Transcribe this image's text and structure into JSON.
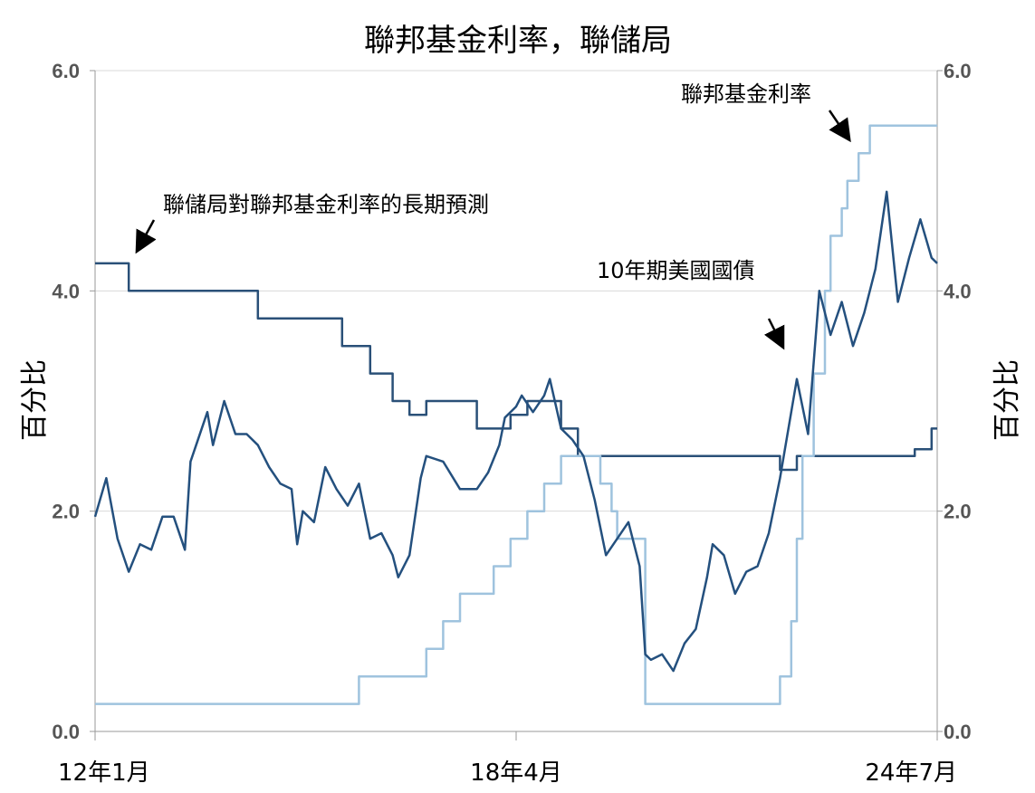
{
  "chart_data": {
    "type": "line",
    "title": "聯邦基金利率，聯儲局",
    "ylabel_left": "百分比",
    "ylabel_right": "百分比",
    "ylim": [
      0,
      6
    ],
    "yticks": [
      "0.0",
      "2.0",
      "4.0",
      "6.0"
    ],
    "x_range": [
      "2012-01",
      "2024-07"
    ],
    "xticks": [
      {
        "label": "12年1月",
        "date": "2012-01"
      },
      {
        "label": "18年4月",
        "date": "2018-04"
      },
      {
        "label": "24年7月",
        "date": "2024-07"
      }
    ],
    "colors": {
      "long_run": "#2a5078",
      "fed_funds": "#9fc3de",
      "treasury": "#24507e",
      "grid": "#d9d9d9"
    },
    "annotations": {
      "long_run": "聯儲局對聯邦基金利率的長期預測",
      "fed_funds": "聯邦基金利率",
      "treasury": "10年期美國國債"
    },
    "series": [
      {
        "key": "long_run",
        "points": [
          [
            "2012-01",
            4.25
          ],
          [
            "2012-07",
            4.25
          ],
          [
            "2012-07",
            4.0
          ],
          [
            "2014-06",
            4.0
          ],
          [
            "2014-06",
            3.75
          ],
          [
            "2015-09",
            3.75
          ],
          [
            "2015-09",
            3.5
          ],
          [
            "2016-02",
            3.5
          ],
          [
            "2016-02",
            3.25
          ],
          [
            "2016-06",
            3.25
          ],
          [
            "2016-06",
            3.0
          ],
          [
            "2016-09",
            3.0
          ],
          [
            "2016-09",
            2.875
          ],
          [
            "2016-12",
            2.875
          ],
          [
            "2016-12",
            3.0
          ],
          [
            "2017-09",
            3.0
          ],
          [
            "2017-09",
            2.75
          ],
          [
            "2018-03",
            2.75
          ],
          [
            "2018-03",
            2.875
          ],
          [
            "2018-06",
            2.875
          ],
          [
            "2018-06",
            3.0
          ],
          [
            "2018-12",
            3.0
          ],
          [
            "2018-12",
            2.75
          ],
          [
            "2019-03",
            2.75
          ],
          [
            "2019-03",
            2.5
          ],
          [
            "2022-03",
            2.5
          ],
          [
            "2022-03",
            2.375
          ],
          [
            "2022-06",
            2.375
          ],
          [
            "2022-06",
            2.5
          ],
          [
            "2024-03",
            2.5
          ],
          [
            "2024-03",
            2.5625
          ],
          [
            "2024-06",
            2.5625
          ],
          [
            "2024-06",
            2.75
          ],
          [
            "2024-07",
            2.75
          ]
        ]
      },
      {
        "key": "fed_funds",
        "points": [
          [
            "2012-01",
            0.25
          ],
          [
            "2015-12",
            0.25
          ],
          [
            "2015-12",
            0.5
          ],
          [
            "2016-12",
            0.5
          ],
          [
            "2016-12",
            0.75
          ],
          [
            "2017-03",
            0.75
          ],
          [
            "2017-03",
            1.0
          ],
          [
            "2017-06",
            1.0
          ],
          [
            "2017-06",
            1.25
          ],
          [
            "2017-12",
            1.25
          ],
          [
            "2017-12",
            1.5
          ],
          [
            "2018-03",
            1.5
          ],
          [
            "2018-03",
            1.75
          ],
          [
            "2018-06",
            1.75
          ],
          [
            "2018-06",
            2.0
          ],
          [
            "2018-09",
            2.0
          ],
          [
            "2018-09",
            2.25
          ],
          [
            "2018-12",
            2.25
          ],
          [
            "2018-12",
            2.5
          ],
          [
            "2019-07",
            2.5
          ],
          [
            "2019-07",
            2.25
          ],
          [
            "2019-09",
            2.25
          ],
          [
            "2019-09",
            2.0
          ],
          [
            "2019-10",
            2.0
          ],
          [
            "2019-10",
            1.75
          ],
          [
            "2020-03",
            1.75
          ],
          [
            "2020-03",
            0.25
          ],
          [
            "2022-03",
            0.25
          ],
          [
            "2022-03",
            0.5
          ],
          [
            "2022-05",
            0.5
          ],
          [
            "2022-05",
            1.0
          ],
          [
            "2022-06",
            1.0
          ],
          [
            "2022-06",
            1.75
          ],
          [
            "2022-07",
            1.75
          ],
          [
            "2022-07",
            2.5
          ],
          [
            "2022-09",
            2.5
          ],
          [
            "2022-09",
            3.25
          ],
          [
            "2022-11",
            3.25
          ],
          [
            "2022-11",
            4.0
          ],
          [
            "2022-12",
            4.0
          ],
          [
            "2022-12",
            4.5
          ],
          [
            "2023-02",
            4.5
          ],
          [
            "2023-02",
            4.75
          ],
          [
            "2023-03",
            4.75
          ],
          [
            "2023-03",
            5.0
          ],
          [
            "2023-05",
            5.0
          ],
          [
            "2023-05",
            5.25
          ],
          [
            "2023-07",
            5.25
          ],
          [
            "2023-07",
            5.5
          ],
          [
            "2024-07",
            5.5
          ]
        ]
      },
      {
        "key": "treasury",
        "points": [
          [
            "2012-01",
            1.95
          ],
          [
            "2012-03",
            2.3
          ],
          [
            "2012-05",
            1.75
          ],
          [
            "2012-07",
            1.45
          ],
          [
            "2012-09",
            1.7
          ],
          [
            "2012-11",
            1.65
          ],
          [
            "2013-01",
            1.95
          ],
          [
            "2013-03",
            1.95
          ],
          [
            "2013-05",
            1.65
          ],
          [
            "2013-06",
            2.45
          ],
          [
            "2013-07",
            2.6
          ],
          [
            "2013-09",
            2.9
          ],
          [
            "2013-10",
            2.6
          ],
          [
            "2013-12",
            3.0
          ],
          [
            "2014-02",
            2.7
          ],
          [
            "2014-04",
            2.7
          ],
          [
            "2014-06",
            2.6
          ],
          [
            "2014-08",
            2.4
          ],
          [
            "2014-10",
            2.25
          ],
          [
            "2014-12",
            2.2
          ],
          [
            "2015-01",
            1.7
          ],
          [
            "2015-02",
            2.0
          ],
          [
            "2015-04",
            1.9
          ],
          [
            "2015-06",
            2.4
          ],
          [
            "2015-08",
            2.2
          ],
          [
            "2015-10",
            2.05
          ],
          [
            "2015-12",
            2.25
          ],
          [
            "2016-02",
            1.75
          ],
          [
            "2016-04",
            1.8
          ],
          [
            "2016-06",
            1.6
          ],
          [
            "2016-07",
            1.4
          ],
          [
            "2016-09",
            1.6
          ],
          [
            "2016-11",
            2.3
          ],
          [
            "2016-12",
            2.5
          ],
          [
            "2017-03",
            2.45
          ],
          [
            "2017-06",
            2.2
          ],
          [
            "2017-09",
            2.2
          ],
          [
            "2017-11",
            2.35
          ],
          [
            "2018-01",
            2.6
          ],
          [
            "2018-02",
            2.85
          ],
          [
            "2018-04",
            2.95
          ],
          [
            "2018-05",
            3.05
          ],
          [
            "2018-07",
            2.9
          ],
          [
            "2018-09",
            3.05
          ],
          [
            "2018-10",
            3.2
          ],
          [
            "2018-12",
            2.75
          ],
          [
            "2019-02",
            2.65
          ],
          [
            "2019-04",
            2.5
          ],
          [
            "2019-06",
            2.1
          ],
          [
            "2019-08",
            1.6
          ],
          [
            "2019-10",
            1.75
          ],
          [
            "2019-12",
            1.9
          ],
          [
            "2020-02",
            1.5
          ],
          [
            "2020-03",
            0.7
          ],
          [
            "2020-04",
            0.65
          ],
          [
            "2020-06",
            0.7
          ],
          [
            "2020-08",
            0.55
          ],
          [
            "2020-10",
            0.8
          ],
          [
            "2020-12",
            0.93
          ],
          [
            "2021-02",
            1.4
          ],
          [
            "2021-03",
            1.7
          ],
          [
            "2021-05",
            1.6
          ],
          [
            "2021-07",
            1.25
          ],
          [
            "2021-09",
            1.45
          ],
          [
            "2021-11",
            1.5
          ],
          [
            "2022-01",
            1.8
          ],
          [
            "2022-03",
            2.3
          ],
          [
            "2022-05",
            2.9
          ],
          [
            "2022-06",
            3.2
          ],
          [
            "2022-08",
            2.7
          ],
          [
            "2022-10",
            4.0
          ],
          [
            "2022-12",
            3.6
          ],
          [
            "2023-02",
            3.9
          ],
          [
            "2023-04",
            3.5
          ],
          [
            "2023-06",
            3.8
          ],
          [
            "2023-08",
            4.2
          ],
          [
            "2023-10",
            4.9
          ],
          [
            "2023-11",
            4.4
          ],
          [
            "2023-12",
            3.9
          ],
          [
            "2024-02",
            4.3
          ],
          [
            "2024-04",
            4.65
          ],
          [
            "2024-06",
            4.3
          ],
          [
            "2024-07",
            4.25
          ]
        ]
      }
    ]
  }
}
